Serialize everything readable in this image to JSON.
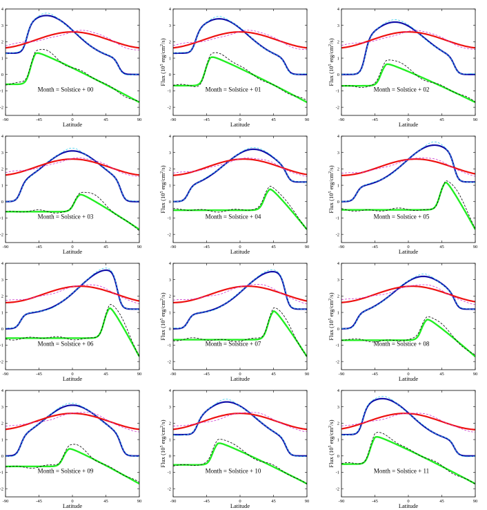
{
  "figure": {
    "xlabel": "Latitude",
    "ylabel_main": "Flux (10",
    "ylabel_sup": "5",
    "ylabel_mid": " erg/cm",
    "ylabel_sup2": "2",
    "ylabel_end": "/s)",
    "xticks": [
      -90,
      -45,
      0,
      45,
      90
    ],
    "yticks": [
      -2,
      -1,
      0,
      1,
      2,
      3,
      4
    ],
    "xlim": [
      -90,
      90
    ],
    "ylim": [
      -2.5,
      4
    ],
    "colors": {
      "blue": "#1010a8",
      "cyan_dash": "#33ccee",
      "red": "#ee1111",
      "magenta_dash": "#cc33cc",
      "green": "#22ee22",
      "black_dash": "#000000"
    }
  },
  "chart_data": [
    {
      "type": "line",
      "annotation": "Month = Solstice + 00",
      "xlabel": "Latitude",
      "month": 0
    },
    {
      "type": "line",
      "annotation": "Month = Solstice + 01",
      "xlabel": "Latitude",
      "month": 1
    },
    {
      "type": "line",
      "annotation": "Month = Solstice + 02",
      "xlabel": "Latitude",
      "month": 2
    },
    {
      "type": "line",
      "annotation": "Month = Solstice + 03",
      "xlabel": "Latitude",
      "month": 3
    },
    {
      "type": "line",
      "annotation": "Month = Solstice + 04",
      "xlabel": "Latitude",
      "month": 4
    },
    {
      "type": "line",
      "annotation": "Month = Solstice + 05",
      "xlabel": "Latitude",
      "month": 5
    },
    {
      "type": "line",
      "annotation": "Month = Solstice + 06",
      "xlabel": "Latitude",
      "month": 6
    },
    {
      "type": "line",
      "annotation": "Month = Solstice + 07",
      "xlabel": "Latitude",
      "month": 7
    },
    {
      "type": "line",
      "annotation": "Month = Solstice + 08",
      "xlabel": "Latitude",
      "month": 8
    },
    {
      "type": "line",
      "annotation": "Month = Solstice + 09",
      "xlabel": "Latitude",
      "month": 9
    },
    {
      "type": "line",
      "annotation": "Month = Solstice + 10",
      "xlabel": "Latitude",
      "month": 10
    },
    {
      "type": "line",
      "annotation": "Month = Solstice + 11",
      "xlabel": "Latitude",
      "month": 11
    }
  ],
  "series_style": [
    {
      "name": "blue",
      "color": "#1010a8",
      "dash": false,
      "width": 2.2
    },
    {
      "name": "cyan",
      "color": "#33ccee",
      "dash": true,
      "width": 0.8
    },
    {
      "name": "red",
      "color": "#ee1111",
      "dash": false,
      "width": 2.2
    },
    {
      "name": "magenta",
      "color": "#cc33cc",
      "dash": true,
      "width": 0.8
    },
    {
      "name": "green",
      "color": "#22ee22",
      "dash": false,
      "width": 2.4
    },
    {
      "name": "black",
      "color": "#000000",
      "dash": true,
      "width": 0.8
    }
  ],
  "series": {
    "blue_peak_lat": [
      -35,
      -28,
      -18,
      0,
      18,
      35,
      48,
      45,
      20,
      0,
      -18,
      -35
    ],
    "blue_peak_val": [
      3.6,
      3.4,
      3.2,
      3.1,
      3.2,
      3.45,
      3.6,
      3.5,
      3.2,
      3.1,
      3.3,
      3.5
    ],
    "red_peak_lat": [
      0,
      0,
      0,
      0,
      5,
      10,
      10,
      10,
      5,
      0,
      0,
      -5
    ],
    "red_peak_val": [
      2.6,
      2.6,
      2.6,
      2.6,
      2.6,
      2.6,
      2.6,
      2.6,
      2.6,
      2.6,
      2.6,
      2.6
    ],
    "green_peak_lat": [
      -50,
      -40,
      -30,
      10,
      40,
      50,
      50,
      45,
      25,
      -5,
      -30,
      -45
    ],
    "green_peak_val": [
      1.4,
      1.15,
      0.7,
      0.5,
      0.85,
      1.3,
      1.4,
      1.2,
      0.65,
      0.5,
      0.85,
      1.25
    ]
  }
}
